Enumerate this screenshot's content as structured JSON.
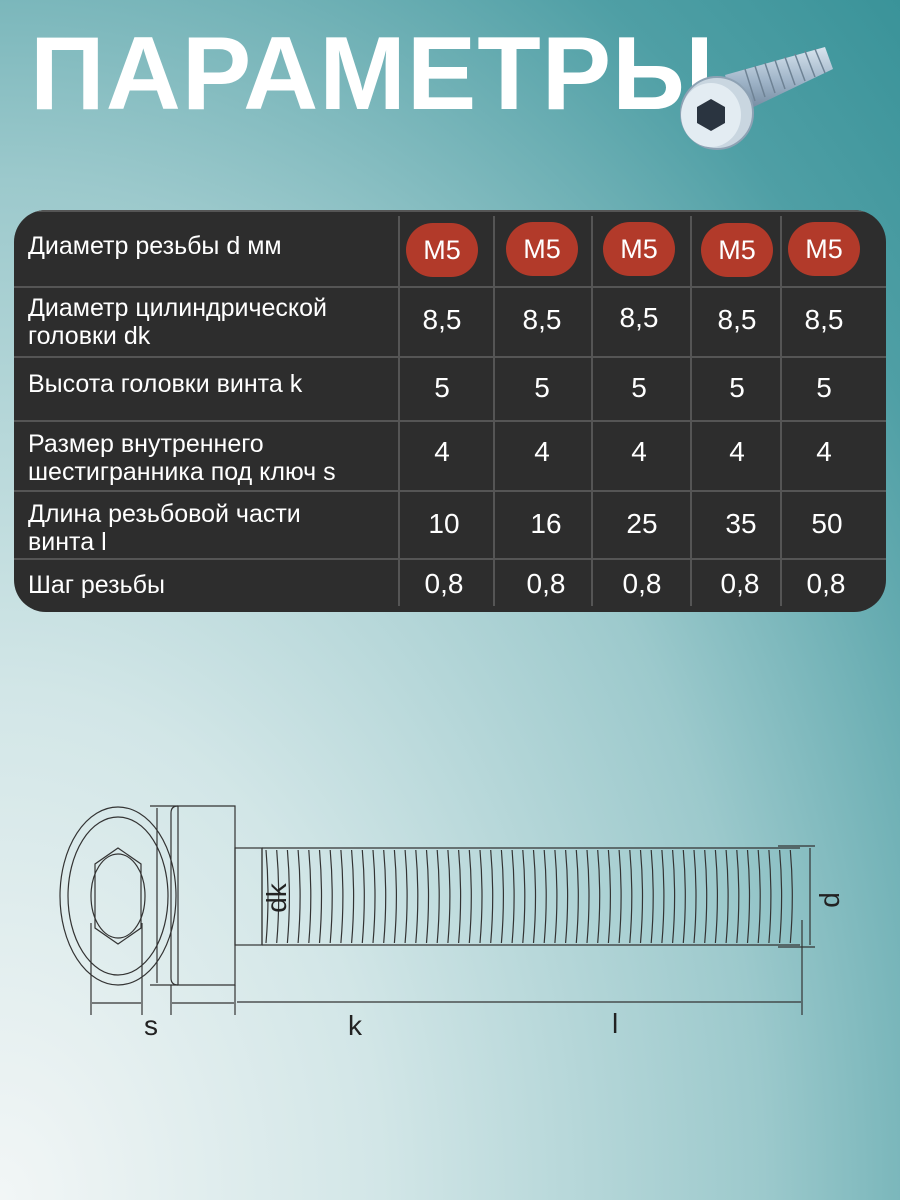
{
  "title": "ПАРАМЕТРЫ",
  "table": {
    "rows": [
      {
        "label": "Диаметр резьбы d мм",
        "values": [
          "M5",
          "M5",
          "M5",
          "M5",
          "M5"
        ],
        "highlight": true
      },
      {
        "label": "Диаметр цилиндрической головки dk",
        "values": [
          "8,5",
          "8,5",
          "8,5",
          "8,5",
          "8,5"
        ]
      },
      {
        "label": "Высота головки винта k",
        "values": [
          "5",
          "5",
          "5",
          "5",
          "5"
        ]
      },
      {
        "label": "Размер внутреннего шестигранника под ключ s",
        "values": [
          "4",
          "4",
          "4",
          "4",
          "4"
        ]
      },
      {
        "label": "Длина резьбовой части винта l",
        "values": [
          "10",
          "16",
          "25",
          "35",
          "50"
        ]
      },
      {
        "label": "Шаг резьбы",
        "values": [
          "0,8",
          "0,8",
          "0,8",
          "0,8",
          "0,8"
        ]
      }
    ],
    "accent": "#b23a2a"
  },
  "diagram": {
    "s": "s",
    "k": "k",
    "l": "l",
    "dk": "dk",
    "d": "d"
  }
}
